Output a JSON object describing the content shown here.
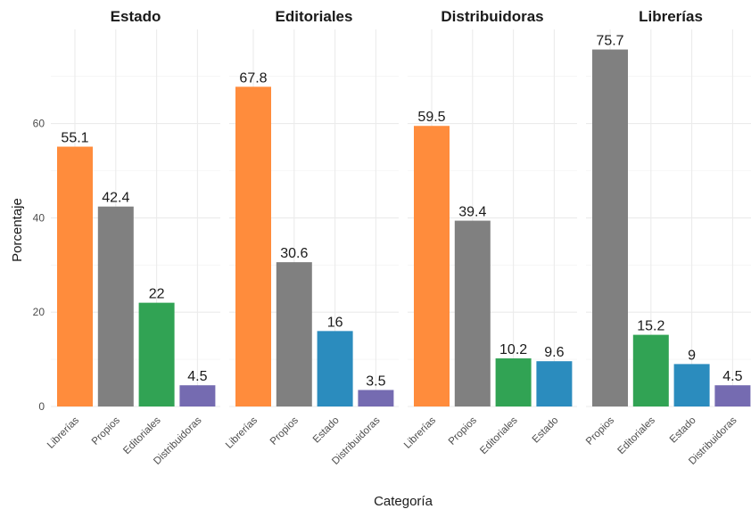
{
  "chart_data": {
    "type": "bar",
    "xlabel": "Categoría",
    "ylabel": "Porcentaje",
    "ylim": [
      0,
      80
    ],
    "yticks": [
      0,
      20,
      40,
      60
    ],
    "grid": true,
    "legend": "none",
    "colors": {
      "Librerías": "#ff8c3c",
      "Propios": "#808080",
      "Editoriales": "#31a354",
      "Estado": "#2b8cbe",
      "Distribuidoras": "#756bb1"
    },
    "panels": [
      {
        "title": "Estado",
        "categories": [
          "Librerías",
          "Propios",
          "Editoriales",
          "Distribuidoras"
        ],
        "values": [
          55.1,
          42.4,
          22,
          4.5
        ],
        "labels": [
          "55.1",
          "42.4",
          "22",
          "4.5"
        ]
      },
      {
        "title": "Editoriales",
        "categories": [
          "Librerías",
          "Propios",
          "Estado",
          "Distribuidoras"
        ],
        "values": [
          67.8,
          30.6,
          16,
          3.5
        ],
        "labels": [
          "67.8",
          "30.6",
          "16",
          "3.5"
        ]
      },
      {
        "title": "Distribuidoras",
        "categories": [
          "Librerías",
          "Propios",
          "Editoriales",
          "Estado"
        ],
        "values": [
          59.5,
          39.4,
          10.2,
          9.6
        ],
        "labels": [
          "59.5",
          "39.4",
          "10.2",
          "9.6"
        ]
      },
      {
        "title": "Librerías",
        "categories": [
          "Propios",
          "Editoriales",
          "Estado",
          "Distribuidoras"
        ],
        "values": [
          75.7,
          15.2,
          9,
          4.5
        ],
        "labels": [
          "75.7",
          "15.2",
          "9",
          "4.5"
        ]
      }
    ]
  }
}
